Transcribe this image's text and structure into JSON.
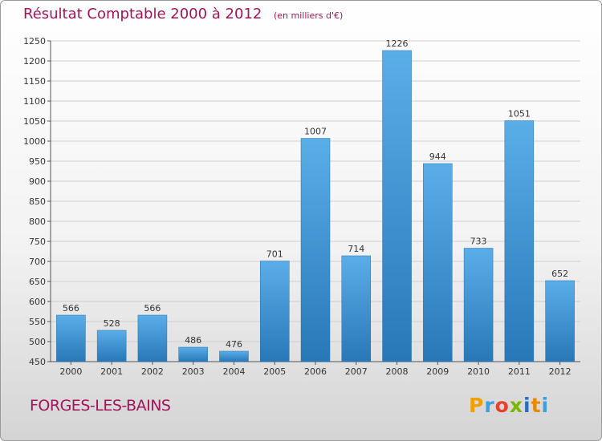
{
  "chart_data": {
    "type": "bar",
    "title": "Résultat Comptable 2000 à 2012",
    "subtitle": "(en milliers d'€)",
    "categories": [
      "2000",
      "2001",
      "2002",
      "2003",
      "2004",
      "2005",
      "2006",
      "2007",
      "2008",
      "2009",
      "2010",
      "2011",
      "2012"
    ],
    "values": [
      566,
      528,
      566,
      486,
      476,
      701,
      1007,
      714,
      1226,
      944,
      733,
      1051,
      652
    ],
    "xlabel": "",
    "ylabel": "",
    "ylim": [
      450,
      1250
    ],
    "yticks": [
      450,
      500,
      550,
      600,
      650,
      700,
      750,
      800,
      850,
      900,
      950,
      1000,
      1050,
      1100,
      1150,
      1200,
      1250
    ],
    "grid": true,
    "legend": "none"
  },
  "commune": "FORGES-LES-BAINS",
  "logo": {
    "letters": [
      "P",
      "r",
      "o",
      "x",
      "i",
      "t",
      "i"
    ],
    "colors": [
      "#f0a000",
      "#3aa0e0",
      "#e8402a",
      "#7ab800",
      "#2a6fc0",
      "#e88a00",
      "#3aa0e0"
    ]
  },
  "colors": {
    "title": "#a2145a",
    "bar_top": "#5aaee8",
    "bar_bottom": "#2878b8",
    "grid": "#cfcfcf"
  }
}
